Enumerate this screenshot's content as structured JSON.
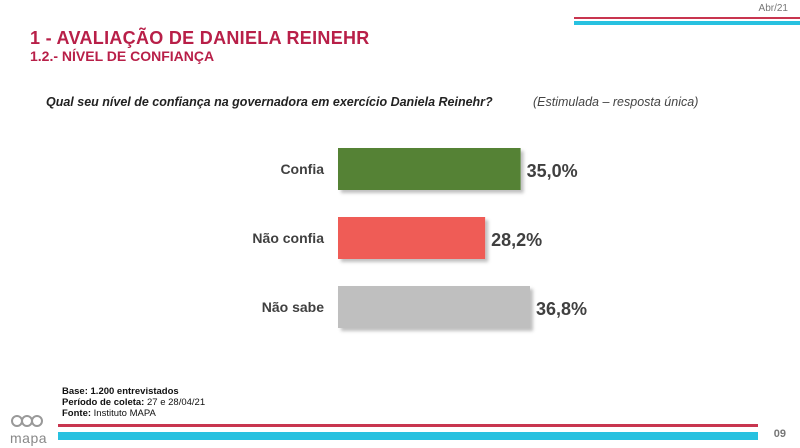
{
  "header": {
    "date": "Abr/21",
    "title": "1 - AVALIAÇÃO DE DANIELA REINEHR",
    "subtitle": "1.2.- NÍVEL DE CONFIANÇA"
  },
  "question": {
    "text": "Qual seu nível de confiança na governadora em exercício Daniela Reinehr?",
    "note": "(Estimulada – resposta única)"
  },
  "chart_data": {
    "type": "bar",
    "orientation": "horizontal",
    "categories": [
      "Confia",
      "Não confia",
      "Não sabe"
    ],
    "values": [
      35.0,
      28.2,
      36.8
    ],
    "value_labels": [
      "35,0%",
      "28,2%",
      "36,8%"
    ],
    "colors": [
      "#548235",
      "#ef5b57",
      "#bfbfbf"
    ],
    "title": "Qual seu nível de confiança na governadora em exercício Daniela Reinehr?",
    "xlabel": "",
    "ylabel": "",
    "xlim": [
      0,
      36.8
    ]
  },
  "footer": {
    "base_label": "Base:",
    "base_value": "1.200 entrevistados",
    "period_label": "Período de coleta:",
    "period_value": "27 e 28/04/21",
    "source_label": "Fonte:",
    "source_value": "Instituto MAPA",
    "logo_text": "mapa",
    "page_number": "09"
  }
}
